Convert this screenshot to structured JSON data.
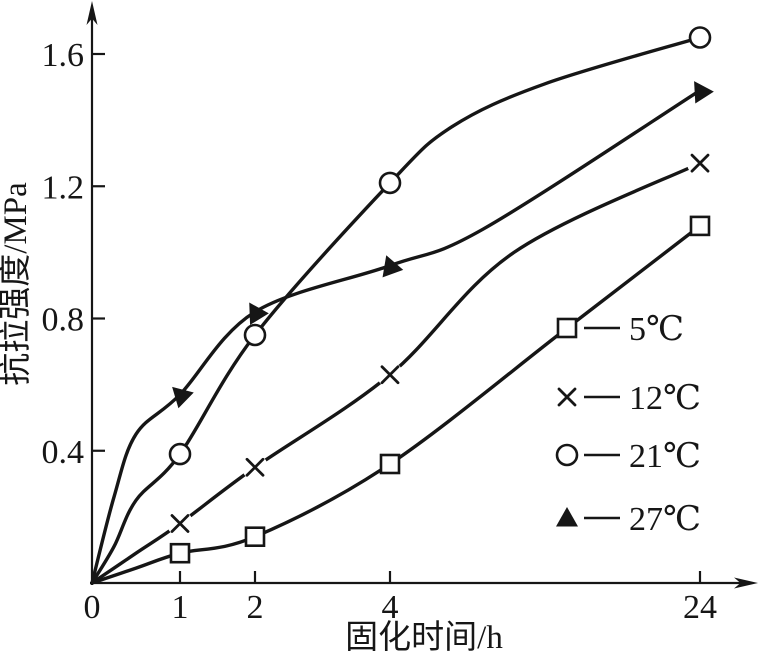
{
  "figure": {
    "background": "#ffffff",
    "ink": "#161616"
  },
  "chart_data": {
    "type": "line",
    "title": "",
    "xlabel": "固化时间/h",
    "ylabel": "抗拉强度/MPa",
    "x_ticks": [
      0,
      1,
      2,
      4,
      24
    ],
    "x_tick_labels": [
      "0",
      "1",
      "2",
      "4",
      "24"
    ],
    "y_ticks": [
      0.4,
      0.8,
      1.2,
      1.6
    ],
    "y_tick_labels": [
      "0.4",
      "0.8",
      "1.2",
      "1.6"
    ],
    "xlim": [
      0,
      26
    ],
    "ylim": [
      0,
      1.72
    ],
    "grid": false,
    "axis_arrows": true,
    "x_axis_scale": "nonlinear-compressed",
    "x": [
      0,
      1,
      2,
      4,
      24
    ],
    "series": [
      {
        "name": "5℃",
        "marker": "square",
        "color": "#161616",
        "values": [
          0,
          0.09,
          0.14,
          0.36,
          1.08
        ]
      },
      {
        "name": "12℃",
        "marker": "x",
        "color": "#161616",
        "values": [
          0,
          0.18,
          0.35,
          0.63,
          1.27
        ]
      },
      {
        "name": "21℃",
        "marker": "circle",
        "color": "#161616",
        "values": [
          0,
          0.39,
          0.75,
          1.21,
          1.65
        ]
      },
      {
        "name": "27℃",
        "marker": "triangle",
        "color": "#161616",
        "values": [
          0,
          0.57,
          0.82,
          0.96,
          1.49
        ]
      }
    ],
    "legend": {
      "position": "right-middle",
      "entries": [
        {
          "label": "5℃",
          "marker": "square"
        },
        {
          "label": "12℃",
          "marker": "x"
        },
        {
          "label": "21℃",
          "marker": "circle"
        },
        {
          "label": "27℃",
          "marker": "triangle"
        }
      ]
    }
  }
}
